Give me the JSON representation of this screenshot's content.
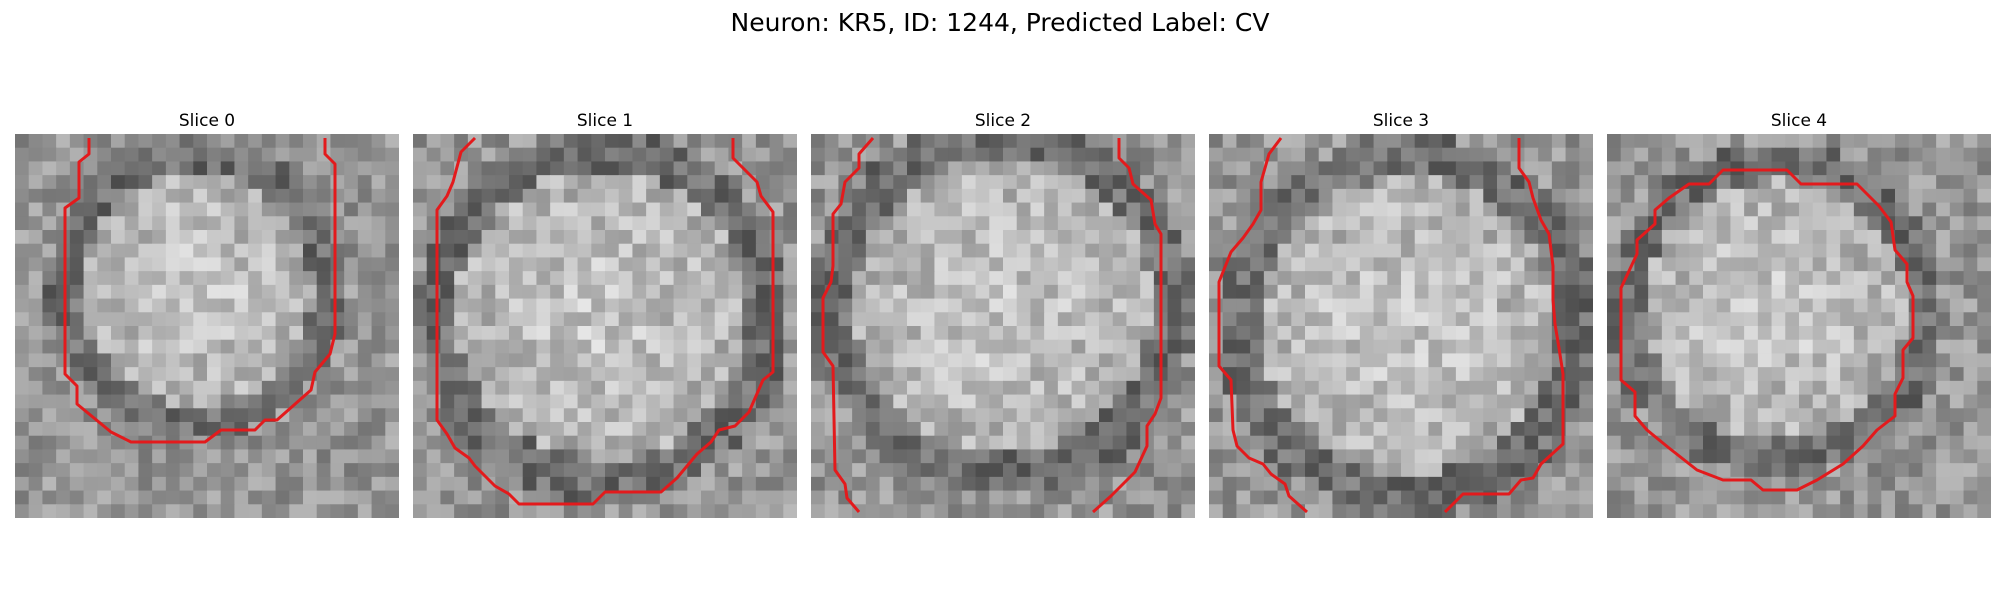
{
  "figure": {
    "title": "Neuron: KR5, ID: 1244, Predicted Label: CV"
  },
  "contour_color": "#e31a1c",
  "slices": [
    {
      "title": "Slice 0"
    },
    {
      "title": "Slice 1"
    },
    {
      "title": "Slice 2"
    },
    {
      "title": "Slice 3"
    },
    {
      "title": "Slice 4"
    }
  ]
}
